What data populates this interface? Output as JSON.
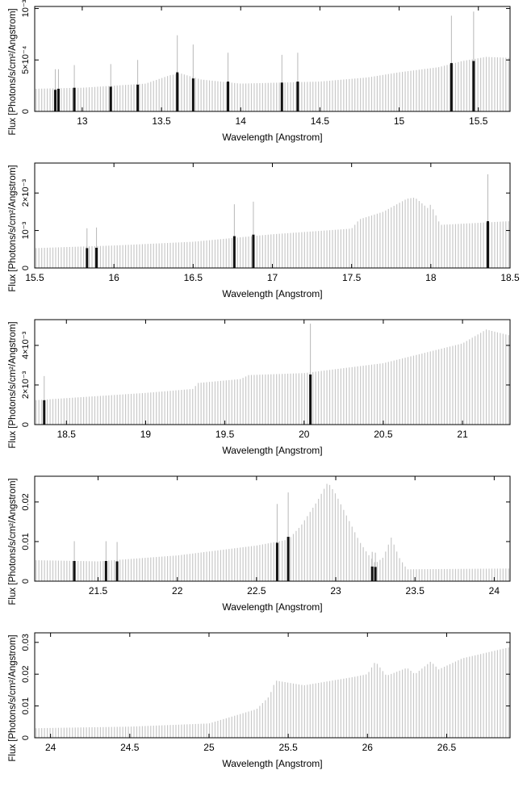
{
  "chart_data": [
    {
      "type": "bar",
      "xlim": [
        12.7,
        15.7
      ],
      "ylim": [
        0,
        0.00102
      ],
      "xticks": [
        13,
        13.5,
        14,
        14.5,
        15,
        15.5
      ],
      "xtick_labels": [
        "13",
        "13.5",
        "14",
        "14.5",
        "15",
        "15.5"
      ],
      "yticks": [
        0,
        0.0005,
        0.001
      ],
      "ytick_labels": [
        "0",
        "5×10⁻⁴",
        "10⁻³"
      ],
      "xlabel": "Wavelength [Angstrom]",
      "ylabel": "Flux [Photons/s/cm²/Angstrom]",
      "continuum": [
        [
          12.7,
          0.00022
        ],
        [
          13.0,
          0.00023
        ],
        [
          13.4,
          0.00027
        ],
        [
          13.55,
          0.00035
        ],
        [
          13.62,
          0.00037
        ],
        [
          13.75,
          0.00031
        ],
        [
          14.0,
          0.00027
        ],
        [
          14.5,
          0.00029
        ],
        [
          14.8,
          0.00033
        ],
        [
          15.0,
          0.00038
        ],
        [
          15.25,
          0.00043
        ],
        [
          15.4,
          0.00049
        ],
        [
          15.55,
          0.00053
        ],
        [
          15.7,
          0.00052
        ]
      ],
      "lines": [
        {
          "x": 12.83,
          "y": 0.00021,
          "err": 0.00041
        },
        {
          "x": 12.85,
          "y": 0.00022,
          "err": 0.00041
        },
        {
          "x": 12.95,
          "y": 0.00023,
          "err": 0.00045
        },
        {
          "x": 13.18,
          "y": 0.00024,
          "err": 0.00046
        },
        {
          "x": 13.35,
          "y": 0.00026,
          "err": 0.0005
        },
        {
          "x": 13.6,
          "y": 0.00038,
          "err": 0.00074
        },
        {
          "x": 13.7,
          "y": 0.00032,
          "err": 0.00065
        },
        {
          "x": 13.92,
          "y": 0.00029,
          "err": 0.00057
        },
        {
          "x": 14.26,
          "y": 0.00028,
          "err": 0.00055
        },
        {
          "x": 14.36,
          "y": 0.00029,
          "err": 0.00057
        },
        {
          "x": 15.33,
          "y": 0.00047,
          "err": 0.00093
        },
        {
          "x": 15.47,
          "y": 0.00049,
          "err": 0.00097
        }
      ]
    },
    {
      "type": "bar",
      "xlim": [
        15.5,
        18.5
      ],
      "ylim": [
        0,
        0.0028
      ],
      "xticks": [
        15.5,
        16,
        16.5,
        17,
        17.5,
        18,
        18.5
      ],
      "xtick_labels": [
        "15.5",
        "16",
        "16.5",
        "17",
        "17.5",
        "18",
        "18.5"
      ],
      "yticks": [
        0,
        0.001,
        0.002
      ],
      "ytick_labels": [
        "0",
        "10⁻³",
        "2×10⁻³"
      ],
      "xlabel": "Wavelength [Angstrom]",
      "ylabel": "Flux [Photons/s/cm²/Angstrom]",
      "continuum": [
        [
          15.5,
          0.00053
        ],
        [
          16.0,
          0.0006
        ],
        [
          16.5,
          0.0007
        ],
        [
          17.0,
          0.0009
        ],
        [
          17.5,
          0.00105
        ],
        [
          17.55,
          0.0013
        ],
        [
          17.7,
          0.0015
        ],
        [
          17.85,
          0.00185
        ],
        [
          17.9,
          0.00188
        ],
        [
          17.98,
          0.0016
        ],
        [
          18.0,
          0.0017
        ],
        [
          18.06,
          0.00115
        ],
        [
          18.5,
          0.00125
        ]
      ],
      "lines": [
        {
          "x": 15.83,
          "y": 0.00053,
          "err": 0.00106
        },
        {
          "x": 15.89,
          "y": 0.00054,
          "err": 0.00108
        },
        {
          "x": 16.76,
          "y": 0.00085,
          "err": 0.0017
        },
        {
          "x": 16.88,
          "y": 0.00089,
          "err": 0.00177
        },
        {
          "x": 18.36,
          "y": 0.00125,
          "err": 0.0025
        }
      ]
    },
    {
      "type": "bar",
      "xlim": [
        18.3,
        21.3
      ],
      "ylim": [
        0,
        0.0053
      ],
      "xticks": [
        18.5,
        19,
        19.5,
        20,
        20.5,
        21
      ],
      "xtick_labels": [
        "18.5",
        "19",
        "19.5",
        "20",
        "20.5",
        "21"
      ],
      "yticks": [
        0,
        0.002,
        0.004
      ],
      "ytick_labels": [
        "0",
        "2×10⁻³",
        "4×10⁻³"
      ],
      "xlabel": "Wavelength [Angstrom]",
      "ylabel": "Flux [Photons/s/cm²/Angstrom]",
      "continuum": [
        [
          18.3,
          0.00123
        ],
        [
          19.0,
          0.0016
        ],
        [
          19.3,
          0.0018
        ],
        [
          19.33,
          0.0021
        ],
        [
          19.6,
          0.0023
        ],
        [
          19.65,
          0.0025
        ],
        [
          20.0,
          0.0026
        ],
        [
          20.5,
          0.0031
        ],
        [
          21.0,
          0.0041
        ],
        [
          21.15,
          0.0048
        ],
        [
          21.3,
          0.0045
        ]
      ],
      "lines": [
        {
          "x": 18.36,
          "y": 0.00123,
          "err": 0.00245
        },
        {
          "x": 20.04,
          "y": 0.00253,
          "err": 0.0051
        }
      ]
    },
    {
      "type": "bar",
      "xlim": [
        21.1,
        24.1
      ],
      "ylim": [
        0,
        0.0265
      ],
      "xticks": [
        21.5,
        22,
        22.5,
        23,
        23.5,
        24
      ],
      "xtick_labels": [
        "21.5",
        "22",
        "22.5",
        "23",
        "23.5",
        "24"
      ],
      "yticks": [
        0,
        0.01,
        0.02
      ],
      "ytick_labels": [
        "0",
        "0.01",
        "0.02"
      ],
      "xlabel": "Wavelength [Angstrom]",
      "ylabel": "Flux [Photons/s/cm²/Angstrom]",
      "continuum": [
        [
          21.1,
          0.0053
        ],
        [
          21.5,
          0.005
        ],
        [
          22.0,
          0.0065
        ],
        [
          22.5,
          0.009
        ],
        [
          22.7,
          0.0105
        ],
        [
          22.78,
          0.014
        ],
        [
          22.88,
          0.02
        ],
        [
          22.95,
          0.025
        ],
        [
          23.0,
          0.022
        ],
        [
          23.15,
          0.01
        ],
        [
          23.2,
          0.007
        ],
        [
          23.25,
          0.0045
        ],
        [
          23.3,
          0.006
        ],
        [
          23.35,
          0.011
        ],
        [
          23.4,
          0.006
        ],
        [
          23.45,
          0.003
        ],
        [
          24.1,
          0.0032
        ]
      ],
      "lines": [
        {
          "x": 21.35,
          "y": 0.0051,
          "err": 0.0101
        },
        {
          "x": 21.55,
          "y": 0.0051,
          "err": 0.0101
        },
        {
          "x": 21.62,
          "y": 0.005,
          "err": 0.0099
        },
        {
          "x": 22.63,
          "y": 0.0097,
          "err": 0.0195
        },
        {
          "x": 22.7,
          "y": 0.0112,
          "err": 0.0224
        },
        {
          "x": 23.23,
          "y": 0.0037,
          "err": 0.0074
        },
        {
          "x": 23.25,
          "y": 0.0036,
          "err": 0.0072
        }
      ]
    },
    {
      "type": "bar",
      "xlim": [
        23.9,
        26.9
      ],
      "ylim": [
        0,
        0.033
      ],
      "xticks": [
        24,
        24.5,
        25,
        25.5,
        26,
        26.5
      ],
      "xtick_labels": [
        "24",
        "24.5",
        "25",
        "25.5",
        "26",
        "26.5"
      ],
      "yticks": [
        0,
        0.01,
        0.02,
        0.03
      ],
      "ytick_labels": [
        "0",
        "0.01",
        "0.02",
        "0.03"
      ],
      "xlabel": "Wavelength [Angstrom]",
      "ylabel": "Flux [Photons/s/cm²/Angstrom]",
      "continuum": [
        [
          23.9,
          0.003
        ],
        [
          24.5,
          0.0035
        ],
        [
          25.0,
          0.0045
        ],
        [
          25.3,
          0.009
        ],
        [
          25.38,
          0.013
        ],
        [
          25.42,
          0.018
        ],
        [
          25.6,
          0.0165
        ],
        [
          25.9,
          0.019
        ],
        [
          26.0,
          0.02
        ],
        [
          26.05,
          0.024
        ],
        [
          26.12,
          0.0195
        ],
        [
          26.25,
          0.022
        ],
        [
          26.3,
          0.02
        ],
        [
          26.4,
          0.024
        ],
        [
          26.45,
          0.0215
        ],
        [
          26.6,
          0.025
        ],
        [
          26.9,
          0.0285
        ]
      ],
      "lines": []
    }
  ]
}
